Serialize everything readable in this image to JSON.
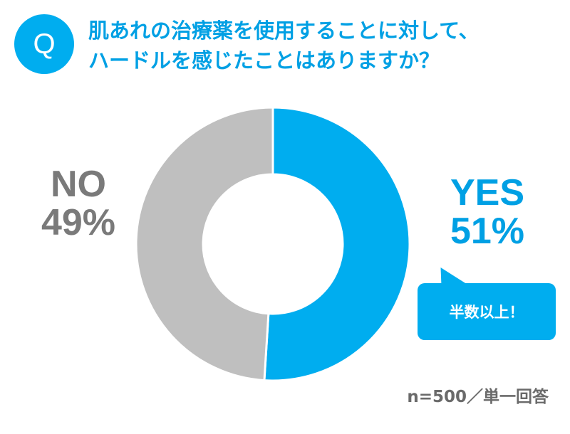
{
  "question": {
    "badge": "Q",
    "line1": "肌あれの治療薬を使用することに対して、",
    "line2": "ハードルを感じたことはありますか？"
  },
  "chart_data": {
    "type": "pie",
    "donut": true,
    "slices": [
      {
        "label": "YES",
        "value": 51,
        "display": "51%",
        "color": "#00adef"
      },
      {
        "label": "NO",
        "value": 49,
        "display": "49%",
        "color": "#bfbfbf"
      }
    ]
  },
  "callout": {
    "text": "半数以上！"
  },
  "sample_note": "n=500／単一回答"
}
